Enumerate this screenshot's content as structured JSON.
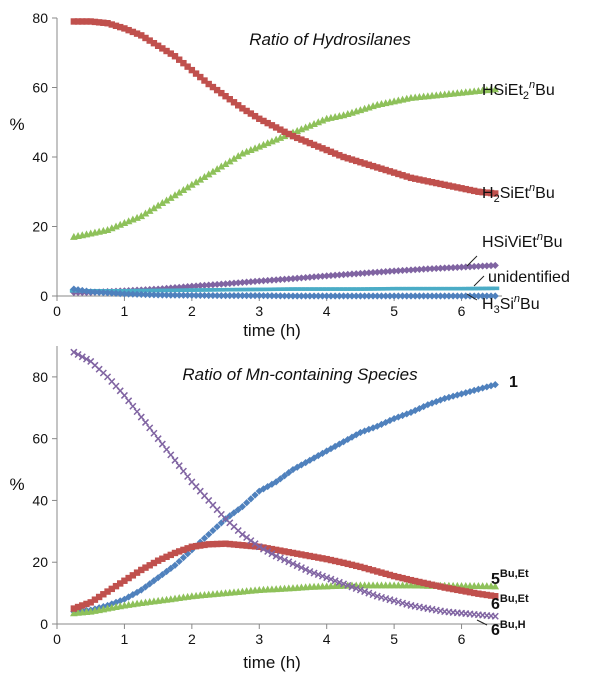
{
  "chart_data": [
    {
      "type": "scatter",
      "title": "Ratio of Hydrosilanes",
      "xlabel": "time (h)",
      "ylabel": "%",
      "xlim": [
        0,
        6.6
      ],
      "ylim": [
        0,
        80
      ],
      "xticks": [
        "0",
        "1",
        "2",
        "3",
        "4",
        "5",
        "6"
      ],
      "yticks": [
        "0",
        "20",
        "40",
        "60",
        "80"
      ],
      "grid": false,
      "legend": "direct labels at right end of series",
      "series": [
        {
          "name": "HSiEt2nBu",
          "label": {
            "base": "HSiEt",
            "sub": "2",
            "sup": "n",
            "rest": "Bu"
          },
          "color": "#8ec15a",
          "marker": "triangle",
          "x": [
            0.25,
            0.5,
            0.75,
            1.0,
            1.25,
            1.5,
            1.75,
            2.0,
            2.25,
            2.5,
            2.75,
            3.0,
            3.25,
            3.5,
            3.75,
            4.0,
            4.25,
            4.5,
            4.75,
            5.0,
            5.25,
            5.5,
            5.75,
            6.0,
            6.25,
            6.5
          ],
          "y": [
            17,
            18,
            19,
            21,
            23,
            26,
            29,
            32,
            35,
            38,
            41,
            43,
            45,
            47,
            49,
            51,
            52,
            53.5,
            55,
            56,
            57,
            57.5,
            58,
            58.5,
            59,
            59.5
          ]
        },
        {
          "name": "H2SiEtnBu",
          "label": {
            "base": "H",
            "sub": "2",
            "mid": "SiEt",
            "sup": "n",
            "rest": "Bu"
          },
          "color": "#c0504d",
          "marker": "square",
          "x": [
            0.25,
            0.5,
            0.75,
            1.0,
            1.25,
            1.5,
            1.75,
            2.0,
            2.25,
            2.5,
            2.75,
            3.0,
            3.25,
            3.5,
            3.75,
            4.0,
            4.25,
            4.5,
            4.75,
            5.0,
            5.25,
            5.5,
            5.75,
            6.0,
            6.25,
            6.5
          ],
          "y": [
            79,
            79,
            78.5,
            77,
            75,
            72,
            69,
            65,
            61,
            57.5,
            54,
            51,
            48.5,
            46,
            44,
            42,
            40,
            38.5,
            37,
            35.5,
            34,
            33,
            32,
            31,
            30,
            29.5
          ]
        },
        {
          "name": "HSiViEtnBu",
          "label": {
            "base": "HSiViEt",
            "sup": "n",
            "rest": "Bu"
          },
          "color": "#8064a2",
          "marker": "diamond",
          "x": [
            0.25,
            0.5,
            1.0,
            1.5,
            2.0,
            2.5,
            3.0,
            3.5,
            4.0,
            4.5,
            5.0,
            5.5,
            6.0,
            6.5
          ],
          "y": [
            1,
            1,
            1.5,
            2,
            2.8,
            3.5,
            4.3,
            5,
            5.8,
            6.5,
            7.2,
            7.8,
            8.3,
            8.8
          ]
        },
        {
          "name": "unidentified",
          "label": {
            "base": "unidentified"
          },
          "color": "#4bacc6",
          "marker": "dash",
          "x": [
            0.25,
            0.5,
            1.0,
            1.5,
            2.0,
            2.5,
            3.0,
            3.5,
            4.0,
            4.5,
            5.0,
            5.5,
            6.0,
            6.5
          ],
          "y": [
            1.5,
            1.5,
            1.5,
            1.6,
            1.7,
            1.8,
            1.9,
            2,
            2,
            2,
            2.1,
            2.1,
            2.1,
            2.2
          ]
        },
        {
          "name": "H3SinBu",
          "label": {
            "base": "H",
            "sub": "3",
            "mid": "Si",
            "sup": "n",
            "rest": "Bu"
          },
          "color": "#4f81bd",
          "marker": "diamond",
          "x": [
            0.25,
            0.5,
            1.0,
            1.5,
            2.0,
            2.5,
            3.0,
            3.5,
            4.0,
            4.5,
            5.0,
            5.5,
            6.0,
            6.5
          ],
          "y": [
            2,
            1.2,
            0.6,
            0.3,
            0.2,
            0.1,
            0.1,
            0,
            0,
            0,
            0,
            0,
            0,
            0
          ]
        }
      ]
    },
    {
      "type": "scatter",
      "title": "Ratio of Mn-containing Species",
      "xlabel": "time (h)",
      "ylabel": "%",
      "xlim": [
        0,
        6.6
      ],
      "ylim": [
        0,
        90
      ],
      "xticks": [
        "0",
        "1",
        "2",
        "3",
        "4",
        "5",
        "6"
      ],
      "yticks": [
        "0",
        "20",
        "40",
        "60",
        "80"
      ],
      "grid": false,
      "legend": "direct labels at right end of series",
      "series": [
        {
          "name": "1",
          "label": {
            "base": "1"
          },
          "color": "#4f81bd",
          "marker": "diamond",
          "x": [
            0.25,
            0.5,
            0.75,
            1.0,
            1.25,
            1.5,
            1.75,
            2.0,
            2.25,
            2.5,
            2.75,
            3.0,
            3.25,
            3.5,
            3.75,
            4.0,
            4.25,
            4.5,
            4.75,
            5.0,
            5.25,
            5.5,
            5.75,
            6.0,
            6.25,
            6.5
          ],
          "y": [
            4,
            4.5,
            6,
            8,
            11,
            15,
            19,
            24,
            29,
            34,
            38,
            43,
            46,
            50,
            53,
            56,
            59,
            62,
            64,
            66.5,
            68.5,
            71,
            73,
            74.5,
            76,
            77.5
          ]
        },
        {
          "name": "5Bu,Et",
          "label": {
            "base": "5",
            "sup": "Bu,Et"
          },
          "color": "#8ec15a",
          "marker": "triangle",
          "x": [
            0.25,
            0.5,
            0.75,
            1.0,
            1.25,
            1.5,
            1.75,
            2.0,
            2.25,
            2.5,
            2.75,
            3.0,
            3.25,
            3.5,
            3.75,
            4.0,
            4.25,
            4.5,
            4.75,
            5.0,
            5.25,
            5.5,
            5.75,
            6.0,
            6.25,
            6.5
          ],
          "y": [
            3.5,
            4,
            5,
            6,
            6.8,
            7.5,
            8.2,
            9,
            9.5,
            10,
            10.5,
            11,
            11.3,
            11.6,
            12,
            12.2,
            12.4,
            12.5,
            12.5,
            12.5,
            12.5,
            12.4,
            12.4,
            12.3,
            12.3,
            12.2
          ]
        },
        {
          "name": "6Bu,Et",
          "label": {
            "base": "6",
            "sup": "Bu,Et"
          },
          "color": "#c0504d",
          "marker": "square",
          "x": [
            0.25,
            0.5,
            0.75,
            1.0,
            1.25,
            1.5,
            1.75,
            2.0,
            2.25,
            2.5,
            2.75,
            3.0,
            3.25,
            3.5,
            3.75,
            4.0,
            4.25,
            4.5,
            4.75,
            5.0,
            5.25,
            5.5,
            5.75,
            6.0,
            6.25,
            6.5
          ],
          "y": [
            5,
            7,
            10.5,
            14,
            17.5,
            20.5,
            23,
            25,
            25.8,
            26,
            25.5,
            25,
            24,
            23,
            22,
            21,
            19.8,
            18.5,
            17,
            15.5,
            14.2,
            13,
            11.8,
            10.8,
            9.8,
            9
          ]
        },
        {
          "name": "6Bu,H",
          "label": {
            "base": "6",
            "sup": "Bu,H"
          },
          "color": "#8064a2",
          "marker": "cross",
          "x": [
            0.25,
            0.5,
            0.75,
            1.0,
            1.25,
            1.5,
            1.75,
            2.0,
            2.25,
            2.5,
            2.75,
            3.0,
            3.25,
            3.5,
            3.75,
            4.0,
            4.25,
            4.5,
            4.75,
            5.0,
            5.25,
            5.5,
            5.75,
            6.0,
            6.25,
            6.5
          ],
          "y": [
            88,
            85,
            80,
            74,
            67,
            60,
            53,
            46,
            40,
            34,
            29,
            25,
            22,
            19.5,
            17,
            15,
            13,
            11,
            9,
            7.5,
            6,
            5,
            4,
            3.5,
            3,
            2.5
          ]
        }
      ]
    }
  ]
}
